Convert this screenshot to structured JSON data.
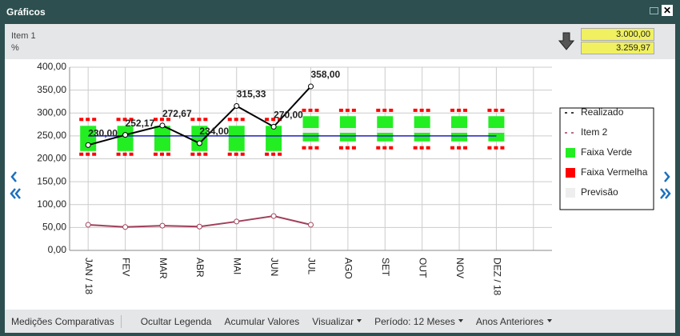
{
  "window": {
    "title": "Gráficos"
  },
  "header": {
    "item": "Item 1",
    "unit": "%",
    "values": [
      "3.000,00",
      "3.259,97"
    ]
  },
  "toolbar": [
    "Medições Comparativas",
    "Ocultar Legenda",
    "Acumular Valores",
    "Visualizar",
    "Período: 12 Meses",
    "Anos Anteriores"
  ],
  "chart_data": {
    "type": "line",
    "categories": [
      "JAN / 18",
      "FEV",
      "MAR",
      "ABR",
      "MAI",
      "JUN",
      "JUL",
      "AGO",
      "SET",
      "OUT",
      "NOV",
      "DEZ / 18",
      null
    ],
    "series": [
      {
        "name": "Realizado",
        "color": "#000000",
        "values": [
          230,
          252.17,
          272.67,
          234,
          315.33,
          270,
          358,
          null,
          null,
          null,
          null,
          null,
          null
        ],
        "value_labels": [
          "230,00",
          "252,17",
          "272,67",
          "234,00",
          "315,33",
          "270,00",
          "358,00",
          null,
          null,
          null,
          null,
          null,
          null
        ]
      },
      {
        "name": "Item 2",
        "color": "#a0405a",
        "values": [
          56,
          51,
          54,
          52,
          63,
          75,
          56,
          null,
          null,
          null,
          null,
          null,
          null
        ]
      }
    ],
    "line_values": [
      250,
      250,
      250,
      250,
      250,
      250,
      250,
      250,
      250,
      250,
      250,
      250,
      null
    ],
    "line_color": "#2020c0",
    "green_band": {
      "name": "Faixa Verde",
      "color": "#22ee22",
      "low": [
        217,
        217,
        217,
        217,
        217,
        217,
        238,
        238,
        238,
        238,
        238,
        238,
        null
      ],
      "high": [
        272,
        272,
        272,
        272,
        272,
        272,
        293,
        293,
        293,
        293,
        293,
        293,
        null
      ]
    },
    "red_band": {
      "name": "Faixa Vermelha",
      "color": "#ff0000",
      "low": [
        210,
        210,
        210,
        210,
        210,
        210,
        224,
        224,
        224,
        224,
        224,
        224,
        null
      ],
      "high": [
        286,
        286,
        286,
        286,
        286,
        286,
        306,
        306,
        306,
        306,
        306,
        306,
        null
      ]
    },
    "forecast": {
      "name": "Previsão",
      "color": "#eeeeee",
      "values": [
        null,
        null,
        null,
        null,
        null,
        null,
        262,
        262,
        262,
        262,
        262,
        262,
        null
      ]
    },
    "ylim": [
      0,
      400
    ],
    "yticks": [
      {
        "value": 0,
        "label": "0,00"
      },
      {
        "value": 50,
        "label": "50,00"
      },
      {
        "value": 100,
        "label": "100,00"
      },
      {
        "value": 150,
        "label": "150,00"
      },
      {
        "value": 200,
        "label": "200,00"
      },
      {
        "value": 250,
        "label": "250,00"
      },
      {
        "value": 300,
        "label": "300,00"
      },
      {
        "value": 350,
        "label": "350,00"
      },
      {
        "value": 400,
        "label": "400,00"
      }
    ],
    "grid": true
  }
}
